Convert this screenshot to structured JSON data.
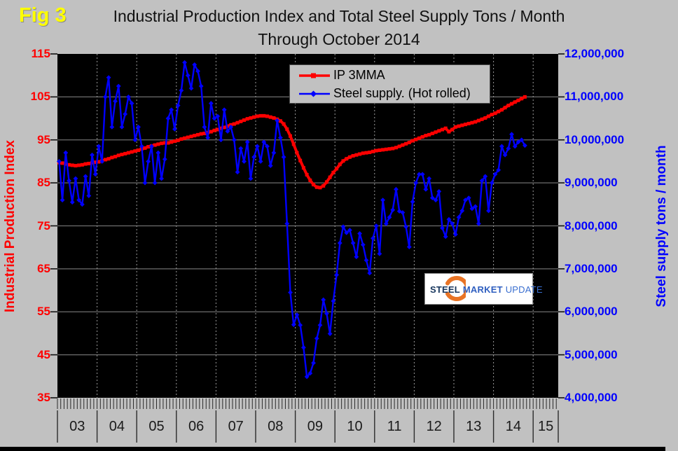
{
  "figure_label": "Fig 3",
  "title": {
    "line1": "Industrial Production Index and Total Steel Supply Tons / Month",
    "line2": "Through October 2014"
  },
  "left_axis": {
    "title": "Industrial Production Index",
    "color": "#ff0000",
    "tick_labels": [
      "115",
      "105",
      "95",
      "85",
      "75",
      "65",
      "55",
      "45",
      "35"
    ]
  },
  "right_axis": {
    "title": "Steel supply tons / month",
    "color": "#0000ff",
    "tick_labels": [
      "12,000,000",
      "11,000,000",
      "10,000,000",
      "9,000,000",
      "8,000,000",
      "7,000,000",
      "6,000,000",
      "5,000,000",
      "4,000,000"
    ]
  },
  "x_axis": {
    "year_labels": [
      "03",
      "04",
      "05",
      "06",
      "07",
      "08",
      "09",
      "10",
      "11",
      "12",
      "13",
      "14",
      "15"
    ]
  },
  "legend": {
    "items": [
      {
        "label": "IP 3MMA",
        "color": "#ff0000",
        "marker": "square"
      },
      {
        "label": "Steel supply. (Hot rolled)",
        "color": "#0000ff",
        "marker": "diamond"
      }
    ]
  },
  "watermark": {
    "word1": "STEEL",
    "word2": "MARKET",
    "word3": "UPDATE",
    "accent_color": "#e97425",
    "word1_color": "#17365d",
    "word2_color": "#2f5fc0",
    "word3_color": "#3a6fd0"
  },
  "chart_data": {
    "type": "line",
    "frequency": "monthly",
    "x_start": "2003-01",
    "x_end": "2014-10",
    "left_ylim": [
      35,
      115
    ],
    "right_ylim": [
      4000000,
      12000000
    ],
    "plot_background": "#000000",
    "grid": {
      "horizontal": "solid-gray",
      "vertical": "dashed-gray-yearly"
    },
    "legend_position": "top-center",
    "series": [
      {
        "name": "IP 3MMA",
        "axis": "left",
        "color": "#ff0000",
        "marker": "square",
        "values": [
          89.7,
          89.6,
          89.4,
          89.2,
          89.1,
          89.0,
          89.1,
          89.2,
          89.4,
          89.5,
          89.7,
          89.8,
          89.9,
          90.1,
          90.4,
          90.6,
          90.9,
          91.1,
          91.4,
          91.6,
          91.8,
          92.0,
          92.2,
          92.4,
          92.6,
          92.9,
          93.1,
          93.4,
          93.6,
          93.8,
          94.0,
          94.2,
          94.3,
          94.3,
          94.5,
          94.7,
          94.9,
          95.2,
          95.4,
          95.6,
          95.8,
          96.0,
          96.2,
          96.4,
          96.5,
          96.7,
          96.9,
          97.2,
          97.4,
          97.7,
          97.9,
          98.2,
          98.5,
          98.7,
          99.0,
          99.3,
          99.6,
          99.9,
          100.1,
          100.3,
          100.5,
          100.6,
          100.6,
          100.5,
          100.3,
          100.1,
          99.8,
          99.4,
          98.7,
          97.5,
          95.9,
          94.0,
          92.0,
          90.2,
          88.5,
          86.9,
          85.6,
          84.6,
          84.0,
          83.9,
          84.3,
          85.2,
          86.3,
          87.4,
          88.3,
          89.3,
          90.1,
          90.6,
          91.0,
          91.3,
          91.5,
          91.7,
          91.9,
          92.0,
          92.1,
          92.3,
          92.5,
          92.6,
          92.7,
          92.8,
          92.9,
          93.0,
          93.2,
          93.5,
          93.8,
          94.1,
          94.4,
          94.8,
          95.1,
          95.4,
          95.7,
          96.0,
          96.2,
          96.5,
          96.8,
          97.1,
          97.4,
          97.7,
          96.9,
          97.4,
          98.0,
          98.2,
          98.4,
          98.6,
          98.8,
          99.0,
          99.2,
          99.5,
          99.8,
          100.1,
          100.5,
          100.9,
          101.2,
          101.6,
          102.0,
          102.5,
          103.0,
          103.4,
          103.8,
          104.2,
          104.6,
          105.0
        ]
      },
      {
        "name": "Steel supply. (Hot rolled)",
        "axis": "right",
        "color": "#0000ff",
        "marker": "diamond",
        "unit": "million tons per month",
        "values": [
          9.5,
          8.6,
          9.7,
          9.05,
          8.55,
          9.1,
          8.6,
          8.5,
          9.15,
          8.7,
          9.65,
          9.2,
          9.85,
          9.5,
          11.0,
          11.45,
          10.3,
          10.9,
          11.25,
          10.3,
          10.6,
          11.0,
          10.85,
          10.0,
          10.3,
          9.85,
          9.0,
          9.5,
          9.85,
          9.0,
          9.7,
          9.1,
          9.55,
          10.5,
          10.7,
          10.25,
          10.8,
          11.15,
          11.8,
          11.5,
          11.2,
          11.75,
          11.6,
          11.25,
          10.3,
          10.05,
          10.85,
          10.5,
          10.55,
          10.0,
          10.7,
          10.2,
          10.3,
          10.0,
          9.25,
          9.8,
          9.5,
          9.95,
          9.1,
          9.6,
          9.85,
          9.5,
          9.95,
          9.85,
          9.4,
          9.7,
          10.45,
          10.05,
          9.6,
          8.05,
          6.45,
          5.7,
          5.93,
          5.69,
          5.17,
          4.49,
          4.57,
          4.81,
          5.38,
          5.69,
          6.28,
          5.96,
          5.49,
          6.25,
          6.86,
          7.6,
          7.98,
          7.84,
          7.9,
          7.6,
          7.28,
          7.82,
          7.56,
          7.2,
          6.9,
          7.71,
          8.0,
          7.35,
          8.6,
          8.05,
          8.2,
          8.37,
          8.85,
          8.34,
          8.31,
          7.98,
          7.51,
          8.56,
          9.0,
          9.2,
          9.2,
          8.85,
          9.1,
          8.65,
          8.6,
          8.8,
          7.95,
          7.75,
          8.15,
          8.05,
          7.8,
          8.2,
          8.35,
          8.6,
          8.65,
          8.4,
          8.45,
          8.05,
          9.05,
          9.15,
          8.35,
          9.0,
          9.2,
          9.3,
          9.85,
          9.65,
          9.8,
          10.13,
          9.85,
          9.95,
          10.0,
          9.87
        ]
      }
    ]
  }
}
